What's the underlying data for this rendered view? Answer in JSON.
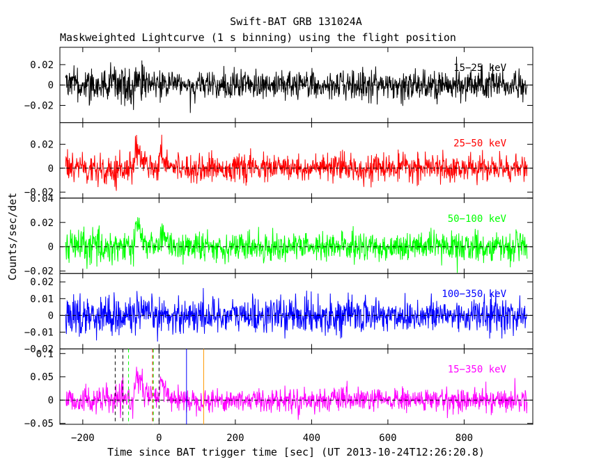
{
  "title": "Swift-BAT GRB 131024A",
  "subtitle": "Maskweighted Lightcurve (1 s binning) using the flight position",
  "chart_data": {
    "type": "line",
    "title": "Swift-BAT GRB 131024A",
    "subtitle": "Maskweighted Lightcurve (1 s binning) using the flight position",
    "xlabel": "Time since BAT trigger time [sec] (UT 2013-10-24T12:26:20.8)",
    "ylabel": "Counts/sec/det",
    "xlim": [
      -260,
      980
    ],
    "x_ticks": [
      -200,
      0,
      200,
      400,
      600,
      800
    ],
    "x_tick_labels": [
      "−200",
      "0",
      "200",
      "400",
      "600",
      "800"
    ],
    "data_range": [
      -245,
      965
    ],
    "binning_sec": 1,
    "grid": false,
    "zero_line": "dashed",
    "panels": [
      {
        "name": "15−25 keV",
        "color": "#000000",
        "ylim": [
          -0.037,
          0.037
        ],
        "y_ticks": [
          -0.02,
          0,
          0.02
        ],
        "y_tick_labels": [
          "−0.02",
          "0",
          "0.02"
        ],
        "noise_std": 0.0072,
        "pre_burst_noise_std": 0.0095,
        "peaks": [
          {
            "t": -60,
            "amplitude": 0.006,
            "rise": 5,
            "decay": 25
          }
        ]
      },
      {
        "name": "25−50 keV",
        "color": "#ff0000",
        "ylim": [
          -0.025,
          0.038
        ],
        "y_ticks": [
          -0.02,
          0,
          0.02
        ],
        "y_tick_labels": [
          "−0.02",
          "0",
          "0.02"
        ],
        "noise_std": 0.0055,
        "pre_burst_noise_std": 0.0068,
        "peaks": [
          {
            "t": -60,
            "amplitude": 0.018,
            "rise": 4,
            "decay": 20
          },
          {
            "t": 5,
            "amplitude": 0.013,
            "rise": 4,
            "decay": 16
          }
        ]
      },
      {
        "name": "50−100 keV",
        "color": "#00ff00",
        "ylim": [
          -0.022,
          0.04
        ],
        "y_ticks": [
          -0.02,
          0,
          0.02,
          0.04
        ],
        "y_tick_labels": [
          "−0.02",
          "0",
          "0.02",
          "0.04"
        ],
        "noise_std": 0.0058,
        "pre_burst_noise_std": 0.0072,
        "peaks": [
          {
            "t": -60,
            "amplitude": 0.02,
            "rise": 3,
            "decay": 14
          },
          {
            "t": 5,
            "amplitude": 0.011,
            "rise": 4,
            "decay": 14
          }
        ]
      },
      {
        "name": "100−350 keV",
        "color": "#0000ff",
        "ylim": [
          -0.02,
          0.025
        ],
        "y_ticks": [
          -0.02,
          -0.01,
          0,
          0.01,
          0.02
        ],
        "y_tick_labels": [
          "−0.02",
          "−0.01",
          "0",
          "0.01",
          "0.02"
        ],
        "noise_std": 0.0052,
        "pre_burst_noise_std": 0.006,
        "peaks": []
      },
      {
        "name": "15−350 keV",
        "color": "#ff00ff",
        "ylim": [
          -0.052,
          0.11
        ],
        "y_ticks": [
          -0.05,
          0,
          0.05,
          0.1
        ],
        "y_tick_labels": [
          "−0.05",
          "0",
          "0.05",
          "0.1"
        ],
        "noise_std": 0.0125,
        "pre_burst_noise_std": 0.0145,
        "peaks": [
          {
            "t": -60,
            "amplitude": 0.062,
            "rise": 4,
            "decay": 18
          },
          {
            "t": 5,
            "amplitude": 0.035,
            "rise": 4,
            "decay": 16
          }
        ],
        "vertical_markers": [
          {
            "t": -115,
            "color": "#000000",
            "style": "dashed"
          },
          {
            "t": -95,
            "color": "#000000",
            "style": "dashed"
          },
          {
            "t": -80,
            "color": "#00ff00",
            "style": "dashed"
          },
          {
            "t": -17,
            "color": "#ff0000",
            "style": "dashed"
          },
          {
            "t": -15,
            "color": "#00ff00",
            "style": "dashed"
          },
          {
            "t": 0,
            "color": "#000000",
            "style": "dashed"
          },
          {
            "t": 72,
            "color": "#0000ff",
            "style": "solid"
          },
          {
            "t": 117,
            "color": "#ff9900",
            "style": "solid"
          }
        ]
      }
    ]
  }
}
